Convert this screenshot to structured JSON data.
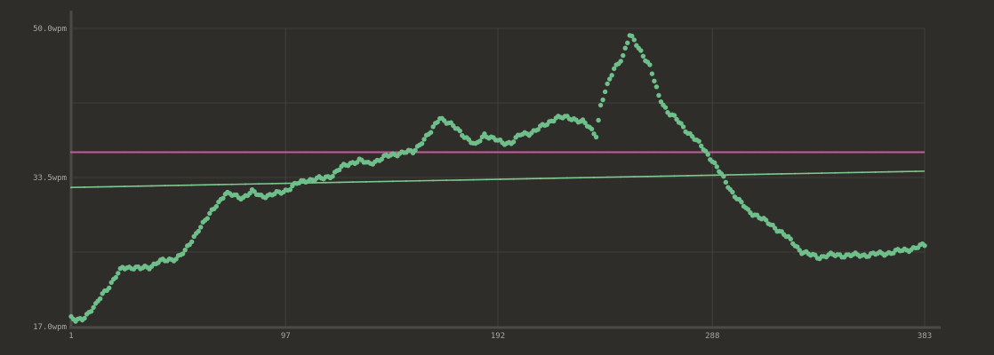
{
  "chart_data": {
    "type": "scatter",
    "title": "",
    "xlabel": "",
    "ylabel": "",
    "xlim": [
      1,
      383
    ],
    "ylim": [
      17.0,
      50.0
    ],
    "x_ticks": [
      {
        "value": 1,
        "label": "1"
      },
      {
        "value": 97,
        "label": "97"
      },
      {
        "value": 192,
        "label": "192"
      },
      {
        "value": 288,
        "label": "288"
      },
      {
        "value": 383,
        "label": "383"
      }
    ],
    "y_ticks": [
      {
        "value": 17.0,
        "label": "17.0wpm"
      },
      {
        "value": 33.5,
        "label": "33.5wpm"
      },
      {
        "value": 50.0,
        "label": "50.0wpm"
      }
    ],
    "grid": true,
    "colors": {
      "background": "#2f2d2a",
      "points": "#6fbf8b",
      "average_line": "#c75b9a",
      "trend_line": "#7cc98f",
      "grid": "#42403c",
      "axis": "#4c4a46",
      "tick_text": "#a9a6a0"
    },
    "series": [
      {
        "kind": "points",
        "sample_anchors": [
          [
            1,
            17.9
          ],
          [
            3,
            17.6
          ],
          [
            6,
            17.9
          ],
          [
            9,
            18.6
          ],
          [
            12,
            19.3
          ],
          [
            15,
            20.6
          ],
          [
            18,
            21.5
          ],
          [
            21,
            22.5
          ],
          [
            24,
            23.5
          ],
          [
            28,
            23.6
          ],
          [
            32,
            23.4
          ],
          [
            36,
            23.6
          ],
          [
            40,
            24.2
          ],
          [
            44,
            24.3
          ],
          [
            48,
            24.6
          ],
          [
            52,
            25.3
          ],
          [
            55,
            26.5
          ],
          [
            58,
            27.8
          ],
          [
            62,
            29.0
          ],
          [
            66,
            30.5
          ],
          [
            70,
            31.7
          ],
          [
            74,
            31.5
          ],
          [
            78,
            31.3
          ],
          [
            82,
            31.9
          ],
          [
            86,
            31.5
          ],
          [
            90,
            31.5
          ],
          [
            94,
            31.8
          ],
          [
            98,
            32.2
          ],
          [
            102,
            32.8
          ],
          [
            106,
            33.2
          ],
          [
            110,
            33.3
          ],
          [
            114,
            33.4
          ],
          [
            118,
            33.8
          ],
          [
            122,
            34.6
          ],
          [
            126,
            35.1
          ],
          [
            130,
            35.4
          ],
          [
            134,
            35.0
          ],
          [
            138,
            35.4
          ],
          [
            142,
            35.8
          ],
          [
            146,
            36.1
          ],
          [
            150,
            36.3
          ],
          [
            154,
            36.3
          ],
          [
            158,
            37.5
          ],
          [
            162,
            38.5
          ],
          [
            166,
            40.2
          ],
          [
            170,
            39.5
          ],
          [
            174,
            38.8
          ],
          [
            178,
            37.9
          ],
          [
            182,
            37.0
          ],
          [
            186,
            38.3
          ],
          [
            190,
            37.8
          ],
          [
            194,
            37.3
          ],
          [
            198,
            37.4
          ],
          [
            202,
            38.2
          ],
          [
            206,
            38.4
          ],
          [
            210,
            38.9
          ],
          [
            214,
            39.4
          ],
          [
            218,
            40.2
          ],
          [
            222,
            40.1
          ],
          [
            226,
            40.0
          ],
          [
            230,
            39.7
          ],
          [
            234,
            38.7
          ],
          [
            236,
            38.2
          ],
          [
            238,
            41.5
          ],
          [
            240,
            43.0
          ],
          [
            244,
            45.5
          ],
          [
            248,
            47.0
          ],
          [
            251,
            49.2
          ],
          [
            253,
            48.6
          ],
          [
            256,
            47.5
          ],
          [
            260,
            45.8
          ],
          [
            264,
            42.5
          ],
          [
            268,
            40.8
          ],
          [
            272,
            39.9
          ],
          [
            276,
            38.8
          ],
          [
            280,
            37.8
          ],
          [
            284,
            36.7
          ],
          [
            288,
            35.4
          ],
          [
            292,
            33.8
          ],
          [
            296,
            32.2
          ],
          [
            300,
            30.9
          ],
          [
            304,
            29.8
          ],
          [
            308,
            29.3
          ],
          [
            312,
            28.6
          ],
          [
            316,
            28.0
          ],
          [
            320,
            27.2
          ],
          [
            324,
            26.3
          ],
          [
            328,
            25.3
          ],
          [
            332,
            24.9
          ],
          [
            336,
            24.7
          ],
          [
            340,
            24.9
          ],
          [
            345,
            24.9
          ],
          [
            350,
            24.9
          ],
          [
            355,
            24.9
          ],
          [
            360,
            25.0
          ],
          [
            365,
            25.1
          ],
          [
            370,
            25.3
          ],
          [
            375,
            25.5
          ],
          [
            380,
            25.8
          ],
          [
            383,
            26.0
          ]
        ]
      },
      {
        "kind": "hline",
        "y": 36.3
      },
      {
        "kind": "trend",
        "points": [
          [
            1,
            32.4
          ],
          [
            383,
            34.2
          ]
        ]
      }
    ]
  }
}
